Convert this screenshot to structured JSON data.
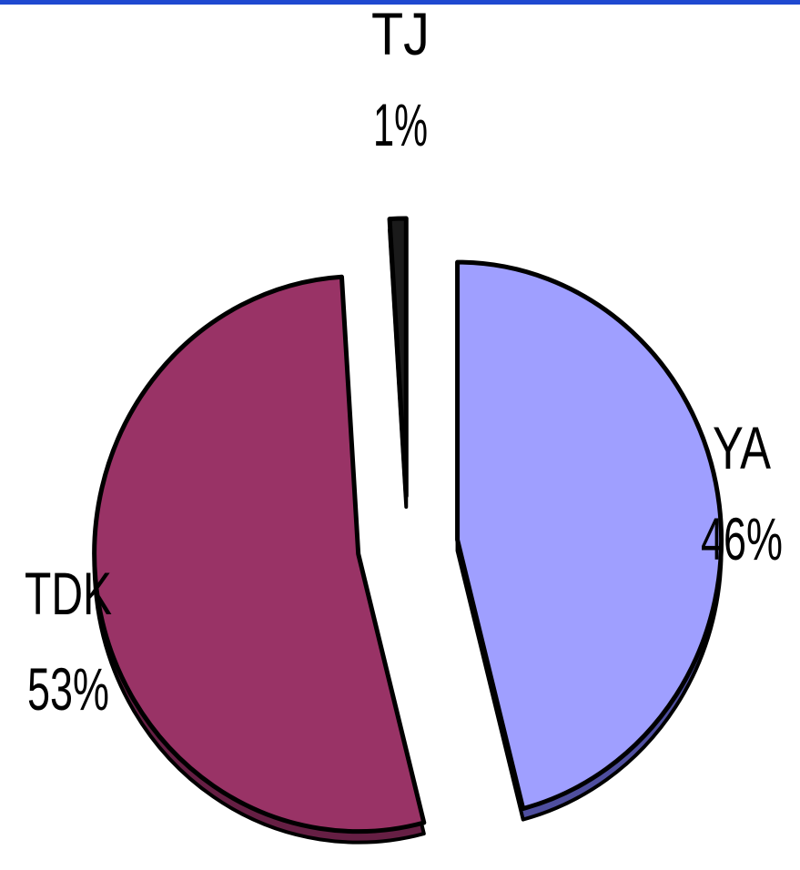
{
  "colors": {
    "top_rule": "#1f49d0",
    "outline": "#000000",
    "background": "#ffffff"
  },
  "chart_data": {
    "type": "pie",
    "title": "",
    "exploded": true,
    "slices": [
      {
        "label": "YA",
        "value": 46,
        "percent_label": "46%",
        "color": "#9f9fff",
        "side_color": "#4f4f9f"
      },
      {
        "label": "TDK",
        "value": 53,
        "percent_label": "53%",
        "color": "#993366",
        "side_color": "#661f44"
      },
      {
        "label": "TJ",
        "value": 1,
        "percent_label": "1%",
        "color": "#1a1a1a",
        "side_color": "#000000"
      }
    ]
  }
}
